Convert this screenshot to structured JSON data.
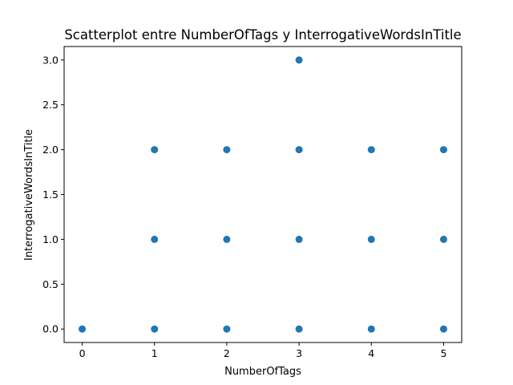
{
  "chart_data": {
    "type": "scatter",
    "title": "Scatterplot entre NumberOfTags y InterrogativeWordsInTitle",
    "xlabel": "NumberOfTags",
    "ylabel": "InterrogativeWordsInTitle",
    "xlim": [
      -0.25,
      5.25
    ],
    "ylim": [
      -0.15,
      3.15
    ],
    "xticks": [
      0,
      1,
      2,
      3,
      4,
      5
    ],
    "xtick_labels": [
      "0",
      "1",
      "2",
      "3",
      "4",
      "5"
    ],
    "yticks": [
      0.0,
      0.5,
      1.0,
      1.5,
      2.0,
      2.5,
      3.0
    ],
    "ytick_labels": [
      "0.0",
      "0.5",
      "1.0",
      "1.5",
      "2.0",
      "2.5",
      "3.0"
    ],
    "grid": false,
    "marker_color": "#1f77b4",
    "points": [
      {
        "x": 0,
        "y": 0
      },
      {
        "x": 1,
        "y": 0
      },
      {
        "x": 1,
        "y": 1
      },
      {
        "x": 1,
        "y": 2
      },
      {
        "x": 2,
        "y": 0
      },
      {
        "x": 2,
        "y": 1
      },
      {
        "x": 2,
        "y": 2
      },
      {
        "x": 3,
        "y": 0
      },
      {
        "x": 3,
        "y": 1
      },
      {
        "x": 3,
        "y": 2
      },
      {
        "x": 3,
        "y": 3
      },
      {
        "x": 4,
        "y": 0
      },
      {
        "x": 4,
        "y": 1
      },
      {
        "x": 4,
        "y": 2
      },
      {
        "x": 5,
        "y": 0
      },
      {
        "x": 5,
        "y": 1
      },
      {
        "x": 5,
        "y": 2
      }
    ]
  }
}
